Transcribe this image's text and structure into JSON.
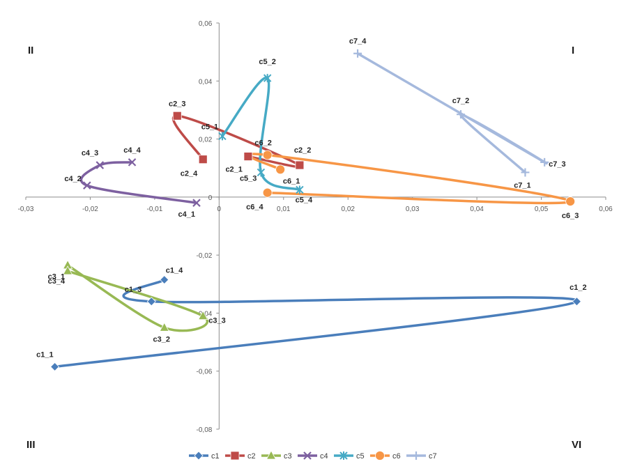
{
  "chart_data": {
    "type": "scatter",
    "xlim": [
      -0.03,
      0.06
    ],
    "ylim": [
      -0.08,
      0.06
    ],
    "x_ticks": [
      "-0,03",
      "-0,02",
      "-0,01",
      "0",
      "0,01",
      "0,02",
      "0,03",
      "0,04",
      "0,05",
      "0,06"
    ],
    "y_ticks": [
      "0,06",
      "0,04",
      "0,02",
      "0",
      "-0,02",
      "-0,04",
      "-0,06",
      "-0,08"
    ],
    "grid": false,
    "legend_position": "bottom",
    "quadrant_labels": {
      "top_left": "II",
      "top_right": "I",
      "bottom_left": "III",
      "bottom_right": "VI"
    },
    "series": [
      {
        "name": "c1",
        "color": "#4a7ebb",
        "marker": "diamond",
        "labels": [
          "c1_1",
          "c1_2",
          "c1_3",
          "c1_4"
        ],
        "x": [
          -0.0255,
          0.0555,
          -0.0105,
          -0.0085
        ],
        "y": [
          -0.0585,
          -0.036,
          -0.036,
          -0.0285
        ]
      },
      {
        "name": "c2",
        "color": "#be4b48",
        "marker": "square",
        "labels": [
          "c2_1",
          "c2_2",
          "c2_3",
          "c2_4"
        ],
        "x": [
          0.0045,
          0.0125,
          -0.0065,
          -0.0025
        ],
        "y": [
          0.014,
          0.011,
          0.028,
          0.013
        ]
      },
      {
        "name": "c3",
        "color": "#98b954",
        "marker": "triangle",
        "labels": [
          "c3_1",
          "c3_2",
          "c3_3",
          "c3_4"
        ],
        "x": [
          -0.0235,
          -0.0085,
          -0.0025,
          -0.0235
        ],
        "y": [
          -0.0235,
          -0.045,
          -0.041,
          -0.0255
        ]
      },
      {
        "name": "c4",
        "color": "#7d60a0",
        "marker": "x",
        "labels": [
          "c4_1",
          "c4_2",
          "c4_3",
          "c4_4"
        ],
        "x": [
          -0.0035,
          -0.0205,
          -0.0185,
          -0.0135
        ],
        "y": [
          -0.002,
          0.004,
          0.011,
          0.012
        ]
      },
      {
        "name": "c5",
        "color": "#46aac5",
        "marker": "star",
        "labels": [
          "c5_1",
          "c5_2",
          "c5_3",
          "c5_4"
        ],
        "x": [
          0.0005,
          0.0075,
          0.0065,
          0.0125
        ],
        "y": [
          0.021,
          0.041,
          0.0085,
          0.0025
        ]
      },
      {
        "name": "c6",
        "color": "#f79646",
        "marker": "circle",
        "labels": [
          "c6_1",
          "c6_2",
          "c6_3",
          "c6_4"
        ],
        "x": [
          0.0095,
          0.0075,
          0.0545,
          0.0075
        ],
        "y": [
          0.0095,
          0.0145,
          -0.0015,
          0.0015
        ]
      },
      {
        "name": "c7",
        "color": "#a5b9dd",
        "marker": "plus",
        "labels": [
          "c7_1",
          "c7_2",
          "c7_3",
          "c7_4"
        ],
        "x": [
          0.0475,
          0.0375,
          0.0505,
          0.0215
        ],
        "y": [
          0.0085,
          0.0285,
          0.012,
          0.0495
        ]
      }
    ]
  }
}
